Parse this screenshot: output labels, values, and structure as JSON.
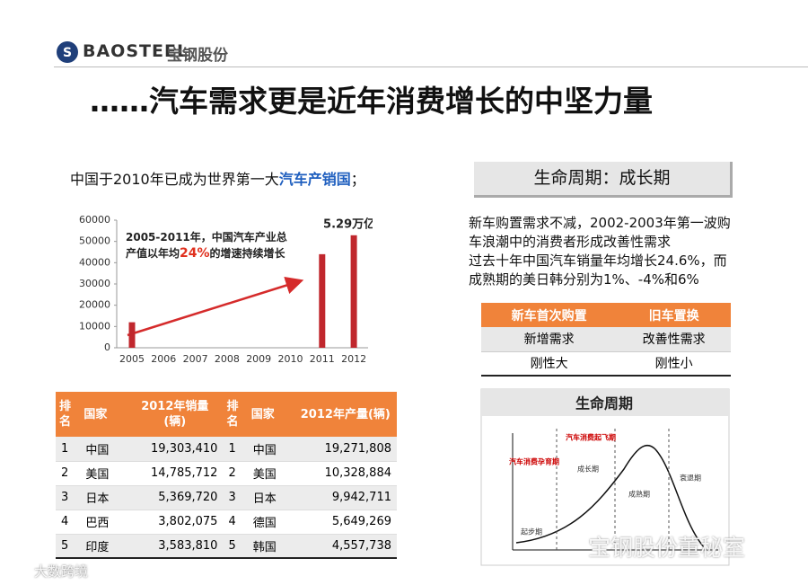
{
  "header": {
    "logo_text": "BAOSTEEL",
    "company": "宝钢股份"
  },
  "title": "……汽车需求更是近年消费增长的中坚力量",
  "intro": {
    "prefix": "中国于2010年已成为世界第一大",
    "highlight": "汽车产销国",
    "suffix": "；"
  },
  "chart_data": {
    "type": "bar",
    "categories": [
      "2005",
      "2006",
      "2007",
      "2008",
      "2009",
      "2010",
      "2011",
      "2012"
    ],
    "values": [
      12000,
      null,
      null,
      null,
      null,
      null,
      44000,
      52900
    ],
    "value_labels": [
      null,
      null,
      null,
      null,
      null,
      null,
      null,
      "5.29万亿"
    ],
    "color": "#c0272d",
    "ylim": [
      0,
      60000
    ],
    "yticks": [
      0,
      10000,
      20000,
      30000,
      40000,
      50000,
      60000
    ],
    "annotation": {
      "line1": "2005-2011年，中国汽车产业总",
      "line2_prefix": "产值以年均",
      "line2_highlight": "24%",
      "line2_suffix": "的增速持续增长"
    }
  },
  "lifecycle_box": {
    "title": "生命周期：成长期",
    "lines": [
      "新车购置需求不减，2002-2003年第一波购",
      "车浪潮中的消费者形成改善性需求",
      "过去十年中国汽车销量年均增长24.6%，而",
      "成熟期的美日韩分别为1%、-4%和6%"
    ]
  },
  "purchase_table": {
    "headers": [
      "新车首次购置",
      "旧车置换"
    ],
    "rows": [
      [
        "新增需求",
        "改善性需求"
      ],
      [
        "刚性大",
        "刚性小"
      ]
    ]
  },
  "ranking_table": {
    "headers": [
      "排名",
      "国家",
      "2012年销量(辆)",
      "排名",
      "国家",
      "2012年产量(辆)"
    ],
    "rows": [
      [
        "1",
        "中国",
        "19,303,410",
        "1",
        "中国",
        "19,271,808"
      ],
      [
        "2",
        "美国",
        "14,785,712",
        "2",
        "美国",
        "10,328,884"
      ],
      [
        "3",
        "日本",
        "5,369,720",
        "3",
        "日本",
        "9,942,711"
      ],
      [
        "4",
        "巴西",
        "3,802,075",
        "4",
        "德国",
        "5,649,269"
      ],
      [
        "5",
        "印度",
        "3,583,810",
        "5",
        "韩国",
        "4,557,738"
      ]
    ]
  },
  "lifecycle_diagram": {
    "title": "生命周期",
    "phases": [
      "汽车消费孕育期",
      "汽车消费起飞期",
      "成长期",
      "成熟期",
      "衰退期",
      "起步期"
    ]
  },
  "watermarks": [
    "宝钢股份董秘室",
    "大数跨境"
  ]
}
